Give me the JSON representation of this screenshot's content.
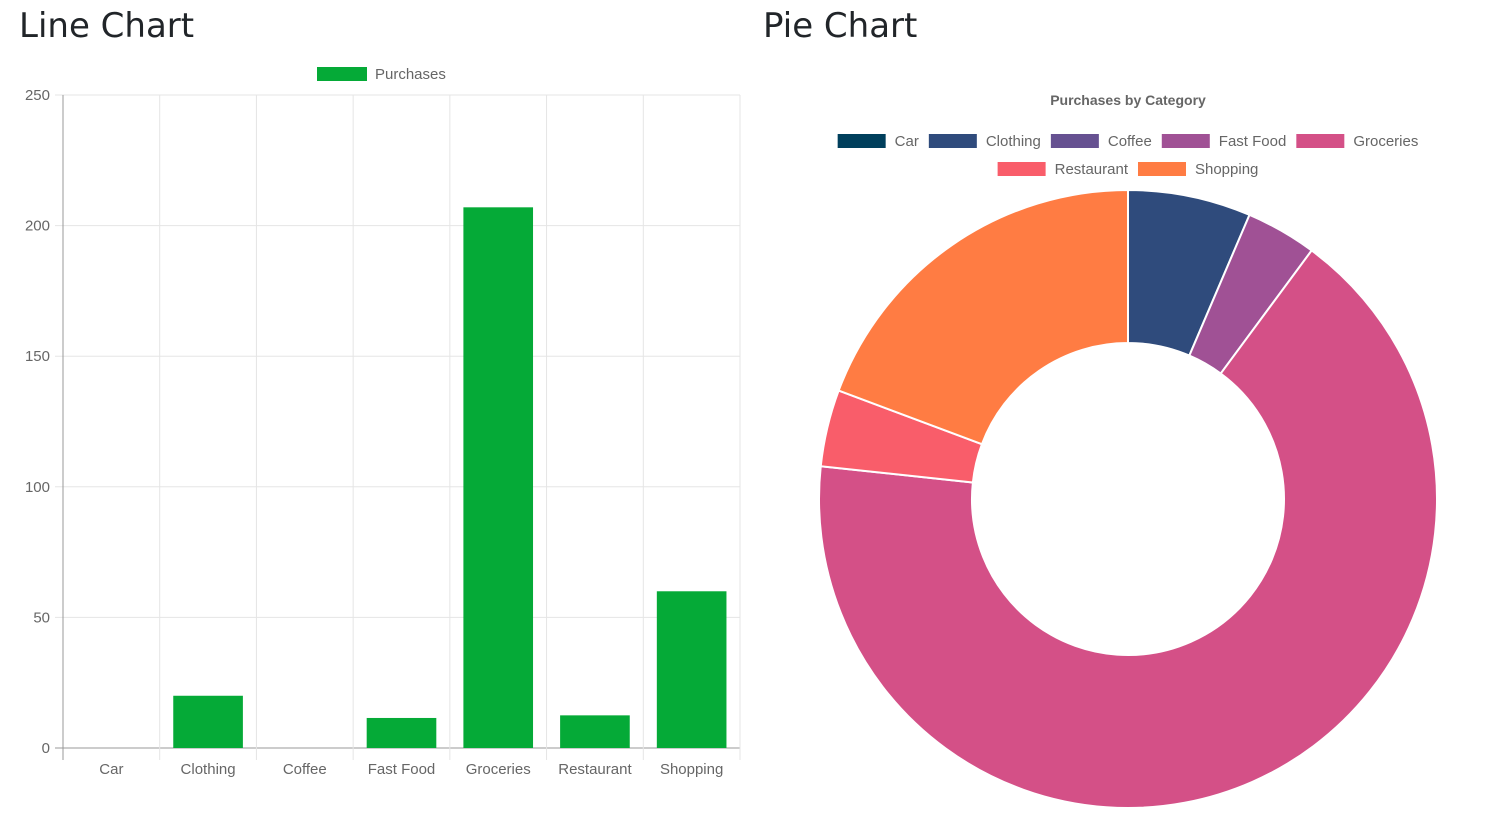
{
  "titles": {
    "bar_panel": "Line Chart",
    "pie_panel": "Pie Chart"
  },
  "chart_data": [
    {
      "type": "bar",
      "categories": [
        "Car",
        "Clothing",
        "Coffee",
        "Fast Food",
        "Groceries",
        "Restaurant",
        "Shopping"
      ],
      "series": [
        {
          "name": "Purchases",
          "values": [
            0,
            20,
            0,
            11.5,
            207,
            12.5,
            60
          ],
          "color": "#05aa37"
        }
      ],
      "ylim": [
        0,
        250
      ],
      "yticks": [
        0,
        50,
        100,
        150,
        200,
        250
      ],
      "grid": true,
      "legend_position": "top"
    },
    {
      "type": "pie",
      "title": "Purchases by Category",
      "labels": [
        "Car",
        "Clothing",
        "Coffee",
        "Fast Food",
        "Groceries",
        "Restaurant",
        "Shopping"
      ],
      "values": [
        0,
        20,
        0,
        11.5,
        207,
        12.5,
        60
      ],
      "colors": [
        "#003f5c",
        "#2f4b7c",
        "#665191",
        "#a05195",
        "#d45087",
        "#f95d6a",
        "#ff7c43"
      ],
      "donut": true,
      "legend_position": "top"
    }
  ]
}
